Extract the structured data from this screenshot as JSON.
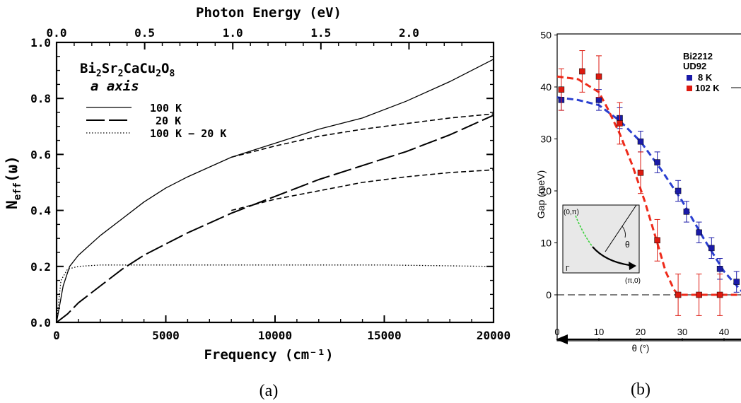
{
  "chart_data": [
    {
      "type": "line",
      "panel_label": "(a)",
      "title": "",
      "top_axis_label": "Photon Energy (eV)",
      "top_ticks": [
        "0.0",
        "0.5",
        "1.0",
        "1.5",
        "2.0"
      ],
      "top_tick_values": [
        0.0,
        0.5,
        1.0,
        1.5,
        2.0
      ],
      "xlabel": "Frequency (cm⁻¹)",
      "ylabel": "N_eff(ω)",
      "ylabel_main": "N",
      "ylabel_sub": "eff",
      "ylabel_tail": "(ω)",
      "xlim": [
        0,
        20000
      ],
      "ylim": [
        0.0,
        1.0
      ],
      "xticks": [
        0,
        5000,
        10000,
        15000,
        20000
      ],
      "xtick_labels": [
        "0",
        "5000",
        "10000",
        "15000",
        "20000"
      ],
      "yticks": [
        0.0,
        0.2,
        0.4,
        0.6,
        0.8,
        1.0
      ],
      "ytick_labels": [
        "0.0",
        "0.2",
        "0.4",
        "0.6",
        "0.8",
        "1.0"
      ],
      "annotation": {
        "formula_parts": [
          "Bi",
          "2",
          "Sr",
          "2",
          "CaCu",
          "2",
          "O",
          "8"
        ],
        "axis_line": "a axis"
      },
      "legend_placement": "upper-left",
      "series": [
        {
          "name": "100 K",
          "style": "solid",
          "x": [
            0,
            300,
            600,
            1000,
            2000,
            3000,
            4000,
            5000,
            6000,
            8000,
            10000,
            12000,
            14000,
            16000,
            18000,
            20000
          ],
          "y": [
            0.0,
            0.13,
            0.2,
            0.24,
            0.31,
            0.37,
            0.43,
            0.48,
            0.52,
            0.59,
            0.64,
            0.69,
            0.73,
            0.79,
            0.86,
            0.94
          ]
        },
        {
          "name": "20 K",
          "style": "long-dash",
          "x": [
            0,
            500,
            1000,
            2000,
            3000,
            4000,
            5000,
            6000,
            8000,
            10000,
            12000,
            14000,
            16000,
            18000,
            20000
          ],
          "y": [
            0.0,
            0.03,
            0.07,
            0.13,
            0.19,
            0.24,
            0.28,
            0.32,
            0.39,
            0.45,
            0.51,
            0.56,
            0.61,
            0.67,
            0.74
          ]
        },
        {
          "name": "100 K − 20 K",
          "style": "dotted",
          "x": [
            0,
            200,
            500,
            1000,
            2000,
            3000,
            5000,
            10000,
            15000,
            20000
          ],
          "y": [
            0.0,
            0.15,
            0.19,
            0.2,
            0.205,
            0.205,
            0.205,
            0.205,
            0.205,
            0.2
          ]
        },
        {
          "name": "",
          "style": "short-dash",
          "x": [
            8000,
            10000,
            12000,
            14000,
            16000,
            18000,
            20000
          ],
          "y": [
            0.4,
            0.44,
            0.47,
            0.5,
            0.52,
            0.535,
            0.545
          ]
        },
        {
          "name": "",
          "style": "short-dash",
          "x": [
            8000,
            10000,
            12000,
            14000,
            16000,
            18000,
            20000
          ],
          "y": [
            0.59,
            0.63,
            0.665,
            0.69,
            0.71,
            0.73,
            0.745
          ]
        }
      ]
    },
    {
      "type": "scatter",
      "panel_label": "(b)",
      "title": "",
      "xlabel": "θ (°)",
      "ylabel": "Gap (meV)",
      "xlim": [
        0,
        45
      ],
      "ylim": [
        -5,
        50
      ],
      "xticks": [
        0,
        10,
        20,
        30,
        40
      ],
      "xtick_labels": [
        "0",
        "10",
        "20",
        "30",
        "40"
      ],
      "yticks": [
        0,
        10,
        20,
        30,
        40,
        50
      ],
      "ytick_labels": [
        "0",
        "10",
        "20",
        "30",
        "40",
        "50"
      ],
      "legend_title": [
        "Bi2212",
        "UD92"
      ],
      "legend_placement": "upper-right",
      "colors": {
        "blue": "#1a1aa8",
        "red": "#dd1a10",
        "blue_fit": "#2a3fd0",
        "red_fit": "#ee2a1a"
      },
      "series": [
        {
          "name": "8 K",
          "color": "#1a1aa8",
          "x": [
            1,
            10,
            15,
            20,
            24,
            29,
            31,
            34,
            37,
            39,
            43,
            45
          ],
          "y": [
            37.5,
            37.5,
            34,
            29.5,
            25.5,
            20,
            16,
            12,
            9,
            5,
            2.5,
            0
          ],
          "err": [
            2,
            2,
            2,
            2,
            2,
            2,
            2,
            2,
            2,
            2,
            2,
            2
          ]
        },
        {
          "name": "102 K",
          "color": "#dd1a10",
          "x": [
            1,
            6,
            10,
            15,
            20,
            24,
            29,
            34,
            39
          ],
          "y": [
            39.5,
            43,
            42,
            33,
            23.5,
            10.5,
            0,
            0,
            0
          ],
          "err": [
            4,
            4,
            4,
            4,
            4,
            4,
            4,
            4,
            4
          ]
        }
      ],
      "fits": [
        {
          "color": "#2a3fd0",
          "x": [
            0,
            5,
            10,
            15,
            20,
            25,
            30,
            35,
            40,
            45
          ],
          "y": [
            38,
            37.5,
            36.5,
            33.5,
            29.5,
            24,
            18,
            11,
            4.5,
            0
          ]
        },
        {
          "color": "#ee2a1a",
          "x": [
            0,
            5,
            10,
            12,
            15,
            18,
            21,
            24,
            26,
            28,
            29,
            45
          ],
          "y": [
            42,
            41.5,
            39,
            36,
            31,
            25,
            18,
            10,
            4.5,
            1,
            0,
            0
          ]
        }
      ],
      "inset": {
        "labels": [
          "(0,π)",
          "θ",
          "Γ",
          "(π,0)"
        ],
        "colors": {
          "background": "#e8e8e8",
          "fermi_surface": "#3cd23c"
        }
      }
    }
  ]
}
